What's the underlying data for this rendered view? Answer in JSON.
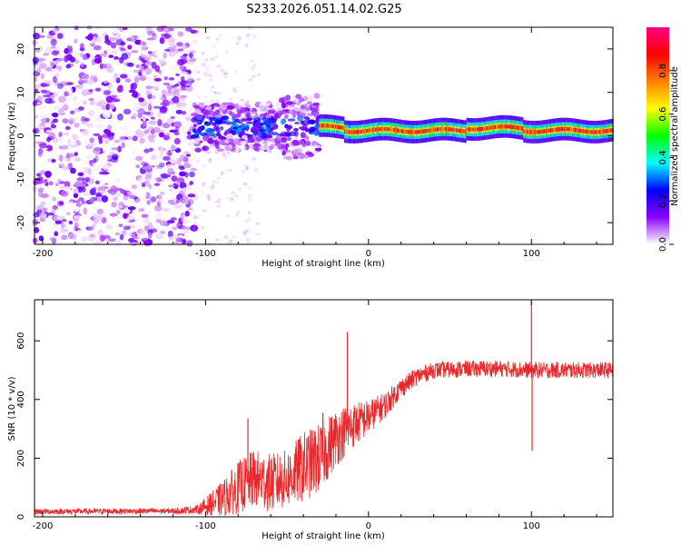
{
  "title": "S233.2026.051.14.02.G25",
  "chart_data": [
    {
      "type": "heatmap",
      "name": "spectrogram",
      "xlabel": "Height of straight line (km)",
      "ylabel": "Frequency (Hz)",
      "xlim": [
        -205,
        150
      ],
      "ylim": [
        -25,
        25
      ],
      "xticks": [
        -200,
        -100,
        0,
        100
      ],
      "yticks": [
        20,
        10,
        0,
        -10,
        -20
      ],
      "colorbar": {
        "label": "Normalized spectral amplitude",
        "range": [
          0,
          1
        ],
        "ticks": [
          0.0,
          0.2,
          0.4,
          0.6,
          0.8
        ],
        "colors": [
          "#ffffff",
          "#8b00ff",
          "#0000ff",
          "#00ffff",
          "#00ff00",
          "#ffff00",
          "#ff8000",
          "#ff0000",
          "#ff0080"
        ]
      },
      "regions": [
        {
          "x": [
            -205,
            -107
          ],
          "desc": "scattered noise",
          "freq_range": [
            -25,
            25
          ],
          "amplitude": 0.1
        },
        {
          "x": [
            -107,
            -30
          ],
          "desc": "broad signal",
          "freq_center": 2,
          "freq_spread": 6,
          "amplitude": 0.25
        },
        {
          "x": [
            -30,
            150
          ],
          "desc": "narrow carrier",
          "freq_center": 1.2,
          "freq_spread": 0.8,
          "amplitude": 0.9
        }
      ]
    },
    {
      "type": "line",
      "name": "snr",
      "xlabel": "Height of straight line (km)",
      "ylabel": "SNR (10 * v/v)",
      "xlim": [
        -205,
        150
      ],
      "ylim": [
        0,
        740
      ],
      "xticks": [
        -200,
        -100,
        0,
        100
      ],
      "yticks": [
        0,
        200,
        400,
        600
      ],
      "color": "#e8282a",
      "profile": {
        "x": [
          -205,
          -120,
          -105,
          -90,
          -80,
          -70,
          -60,
          -50,
          -40,
          -30,
          -20,
          -10,
          0,
          10,
          20,
          30,
          40,
          60,
          80,
          100,
          120,
          150
        ],
        "mean": [
          18,
          20,
          25,
          60,
          100,
          130,
          115,
          130,
          170,
          200,
          270,
          310,
          340,
          380,
          440,
          480,
          500,
          505,
          505,
          500,
          500,
          500
        ],
        "noise": [
          10,
          10,
          15,
          60,
          90,
          100,
          100,
          100,
          120,
          120,
          100,
          80,
          60,
          45,
          35,
          30,
          28,
          28,
          28,
          28,
          28,
          28
        ]
      },
      "spikes": [
        {
          "x": -74,
          "y": 335
        },
        {
          "x": -28,
          "y": 355
        },
        {
          "x": -13,
          "y": 630
        },
        {
          "x": 100,
          "y": 735
        },
        {
          "x": 100.4,
          "y": 225
        }
      ]
    }
  ]
}
